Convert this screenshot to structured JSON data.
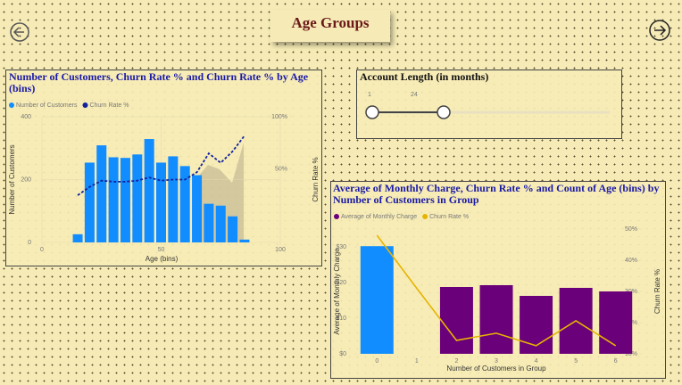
{
  "header": {
    "title": "Age Groups"
  },
  "slicer": {
    "title": "Account Length (in months)",
    "start_label": "1",
    "end_label": "24"
  },
  "chart_data": [
    {
      "type": "bar_line",
      "title": "Number of Customers, Churn Rate % and Churn Rate % by Age (bins)",
      "x_label": "Age (bins)",
      "y_label": "Number of Customers",
      "y2_label": "Churn Rate %",
      "x": [
        15,
        20,
        25,
        30,
        35,
        40,
        45,
        50,
        55,
        60,
        65,
        70,
        75,
        80,
        85
      ],
      "xlim": [
        0,
        100
      ],
      "xticks": [
        0,
        50,
        100
      ],
      "ylim": [
        0,
        400
      ],
      "yticks": [
        0,
        200,
        400
      ],
      "y2lim": [
        -20,
        100
      ],
      "y2ticks": [
        {
          "value": 50,
          "label": "50%"
        },
        {
          "value": 100,
          "label": "100%"
        }
      ],
      "grid": true,
      "series": [
        {
          "name": "Number of Customers",
          "kind": "bar",
          "color": "#118dff",
          "values": [
            26,
            254,
            309,
            271,
            269,
            280,
            329,
            254,
            274,
            243,
            214,
            123,
            117,
            83,
            9
          ]
        },
        {
          "name": "Churn Rate %",
          "kind": "line",
          "axis": "y2",
          "color": "#12239e",
          "values": [
            25,
            33,
            39,
            38,
            38,
            39,
            42,
            39,
            40,
            40,
            47,
            65,
            56,
            67,
            82
          ]
        }
      ]
    },
    {
      "type": "bar_line",
      "title": "Average of Monthly Charge, Churn Rate % and Count of Age (bins) by Number of Customers in Group",
      "x_label": "Number of Customers in Group",
      "y_label": "Average of Monthly Charge",
      "y2_label": "Churn Rate %",
      "categories": [
        "0",
        "1",
        "2",
        "3",
        "4",
        "5",
        "6"
      ],
      "ylim": [
        0,
        35
      ],
      "yticks": [
        {
          "value": 0,
          "label": "$0"
        },
        {
          "value": 10,
          "label": "$10"
        },
        {
          "value": 20,
          "label": "$20"
        },
        {
          "value": 30,
          "label": "$30"
        }
      ],
      "y2lim": [
        10,
        50
      ],
      "y2ticks": [
        {
          "value": 10,
          "label": "10%"
        },
        {
          "value": 20,
          "label": "20%"
        },
        {
          "value": 30,
          "label": "30%"
        },
        {
          "value": 40,
          "label": "40%"
        },
        {
          "value": 50,
          "label": "50%"
        }
      ],
      "grid": false,
      "series": [
        {
          "name": "Average of Monthly Charge",
          "kind": "bar",
          "color": "#6b007b",
          "colors": [
            "#118dff",
            "#6b007b",
            "#6b007b",
            "#6b007b",
            "#6b007b",
            "#6b007b",
            "#6b007b"
          ],
          "values": [
            30.2,
            null,
            18.75,
            19.25,
            16.25,
            18.5,
            17.5
          ]
        },
        {
          "name": "Churn Rate %",
          "kind": "line",
          "axis": "y2",
          "color": "#e6b400",
          "values": [
            48,
            31,
            14.3,
            16.6,
            12.6,
            20.6,
            12.6
          ]
        }
      ]
    }
  ]
}
